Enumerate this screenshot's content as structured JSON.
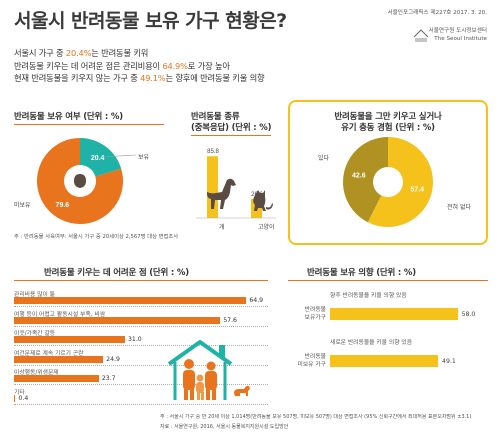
{
  "title": "서울시 반려동물 보유 가구 현황은?",
  "issue": {
    "line1": "서울인포그래픽스 제227호 2017. 3. 20."
  },
  "institute": {
    "line1": "서울연구원 도시정보센터",
    "line2": "The Seoul Institute"
  },
  "summary": {
    "l1_pre": "서울시 가구 중 ",
    "l1_hl": "20.4%",
    "l1_post": "는 반려동물 키워",
    "l2_pre": "반려동물 키우는 데 어려운 점은 관리비용이 ",
    "l2_hl": "64.9%",
    "l2_post": "로 가장 높아",
    "l3_pre": "현재 반려동물을 키우지 않는 가구 중 ",
    "l3_hl": "49.1%",
    "l3_post": "는 향후에 반려동물 키울 의향"
  },
  "ownership": {
    "title": "반려동물 보유 여부 (단위 : %)",
    "owned_label": "보유",
    "not_owned_label": "미보유",
    "owned_value": "20.4",
    "not_owned_value": "79.6",
    "colors": {
      "owned": "#1fb2a6",
      "not_owned": "#e8741e"
    }
  },
  "types": {
    "title": "반려동물 종류",
    "subtitle": "(중복응답) (단위 : %)",
    "dog_label": "개",
    "cat_label": "고양이",
    "dog_value": "85.8",
    "cat_value": "26.6"
  },
  "ownership_note": "주 : 반려동물 사육여부: 서울시 가구 중 20세이상 2,567명 대상 면접조사",
  "difficulties": {
    "title": "반려동물 키우는 데 어려운 점 (단위 : %)",
    "items": [
      {
        "label": "관리비용 많이 듦",
        "value": "64.9"
      },
      {
        "label": "여행 등이 어렵고 활동시설 부족, 비쌈",
        "value": "57.6"
      },
      {
        "label": "이웃/가족간 갈등",
        "value": "31.0"
      },
      {
        "label": "여건문제로 계속 기르기 곤란",
        "value": "24.9"
      },
      {
        "label": "이상행동/위생문제",
        "value": "23.7"
      },
      {
        "label": "기타",
        "value": "0.4"
      }
    ]
  },
  "abandon": {
    "title": "반려동물을 그만 키우고 싶거나",
    "title2": "유기 충동 경험 (단위 : %)",
    "yes_label": "있다",
    "no_label": "전혀 없다",
    "yes_value": "42.6",
    "no_value": "57.4",
    "colors": {
      "yes": "#b09222",
      "no": "#f5c21c"
    }
  },
  "intent": {
    "title": "반려동물 보유 의향 (단위 : %)",
    "owner_label1": "반려동물",
    "owner_label2": "보유가구",
    "nonowner_label1": "반려동물",
    "nonowner_label2": "미보유 가구",
    "owner_caption": "향후 반려동물을 키울 의향 있음",
    "nonowner_caption": "새로운 반려동물을 키울 의향 있음",
    "owner_value": "58.0",
    "nonowner_value": "49.1"
  },
  "footnote": {
    "line1": "주 : 서울시 가구 중 만 20세 이상 1,014명(반려동물 보유 507명, 미보유 507명) 대상 면접조사 (95% 신뢰구간에서 최대허용 표본오차범위 ±3.1)",
    "line2": "자료 : 서울연구원, 2016, 서울시 동물복지지원시설 도입방안"
  },
  "chart_data": [
    {
      "type": "pie",
      "title": "반려동물 보유 여부 (단위 : %)",
      "labels": [
        "보유",
        "미보유"
      ],
      "values": [
        20.4,
        79.6
      ]
    },
    {
      "type": "bar",
      "title": "반려동물 종류 (중복응답) (단위 : %)",
      "categories": [
        "개",
        "고양이"
      ],
      "values": [
        85.8,
        26.6
      ]
    },
    {
      "type": "bar",
      "title": "반려동물 키우는 데 어려운 점 (단위 : %)",
      "categories": [
        "관리비용 많이 듦",
        "여행 등이 어렵고 활동시설 부족, 비쌈",
        "이웃/가족간 갈등",
        "여건문제로 계속 기르기 곤란",
        "이상행동/위생문제",
        "기타"
      ],
      "values": [
        64.9,
        57.6,
        31.0,
        24.9,
        23.7,
        0.4
      ]
    },
    {
      "type": "pie",
      "title": "반려동물을 그만 키우고 싶거나 유기 충동 경험 (단위 : %)",
      "labels": [
        "있다",
        "전혀 없다"
      ],
      "values": [
        42.6,
        57.4
      ]
    },
    {
      "type": "bar",
      "title": "반려동물 보유 의향 (단위 : %)",
      "categories": [
        "반려동물 보유가구",
        "반려동물 미보유 가구"
      ],
      "values": [
        58.0,
        49.1
      ]
    }
  ]
}
